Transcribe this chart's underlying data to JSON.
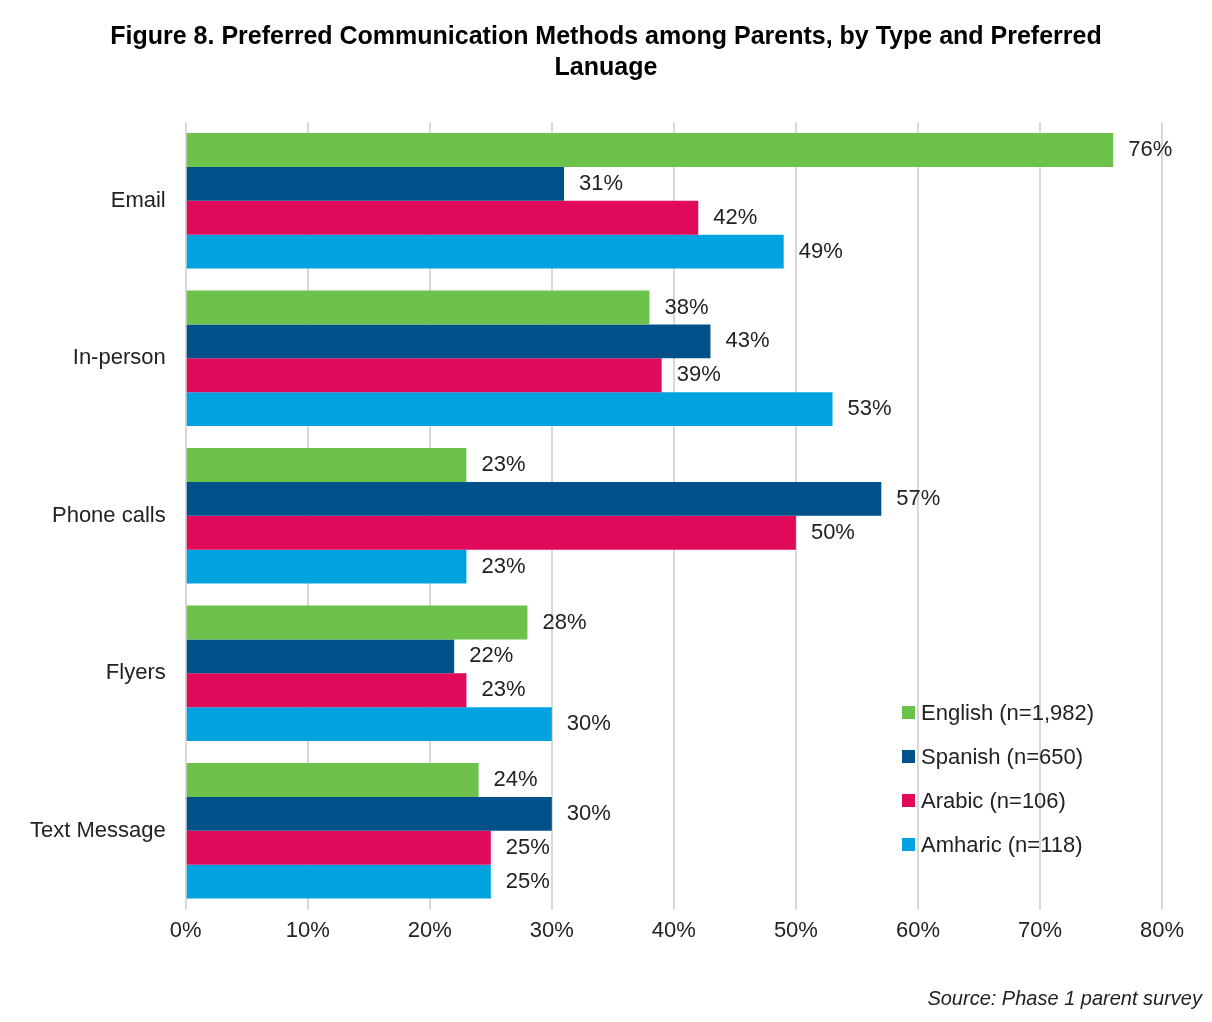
{
  "chart_data": {
    "type": "bar",
    "orientation": "horizontal",
    "title": "Figure 8. Preferred Communication Methods among Parents, by Type and Preferred Lanuage",
    "categories": [
      "Email",
      "In-person",
      "Phone calls",
      "Flyers",
      "Text Message"
    ],
    "series": [
      {
        "name": "English (n=1,982)",
        "color": "#6cc24a",
        "values": [
          76,
          38,
          23,
          28,
          24
        ],
        "value_labels": [
          "76%",
          "38%",
          "23%",
          "28%",
          "24%"
        ]
      },
      {
        "name": "Spanish (n=650)",
        "color": "#00508a",
        "values": [
          31,
          43,
          57,
          22,
          30
        ],
        "value_labels": [
          "31%",
          "43%",
          "57%",
          "22%",
          "30%"
        ]
      },
      {
        "name": "Arabic (n=106)",
        "color": "#e0095a",
        "values": [
          42,
          39,
          50,
          23,
          25
        ],
        "value_labels": [
          "42%",
          "39%",
          "50%",
          "23%",
          "25%"
        ]
      },
      {
        "name": "Amharic (n=118)",
        "color": "#00a3e0",
        "values": [
          49,
          53,
          23,
          30,
          25
        ],
        "value_labels": [
          "49%",
          "53%",
          "23%",
          "30%",
          "25%"
        ]
      }
    ],
    "xlim": [
      0,
      80
    ],
    "xticks": [
      {
        "value": 0,
        "label": "0%"
      },
      {
        "value": 10,
        "label": "10%"
      },
      {
        "value": 20,
        "label": "20%"
      },
      {
        "value": 30,
        "label": "30%"
      },
      {
        "value": 40,
        "label": "40%"
      },
      {
        "value": 50,
        "label": "50%"
      },
      {
        "value": 60,
        "label": "60%"
      },
      {
        "value": 70,
        "label": "70%"
      },
      {
        "value": 80,
        "label": "80%"
      }
    ],
    "grid": "x",
    "legend": "bottom right",
    "annotations": [
      "Source: Phase 1 parent survey"
    ]
  }
}
